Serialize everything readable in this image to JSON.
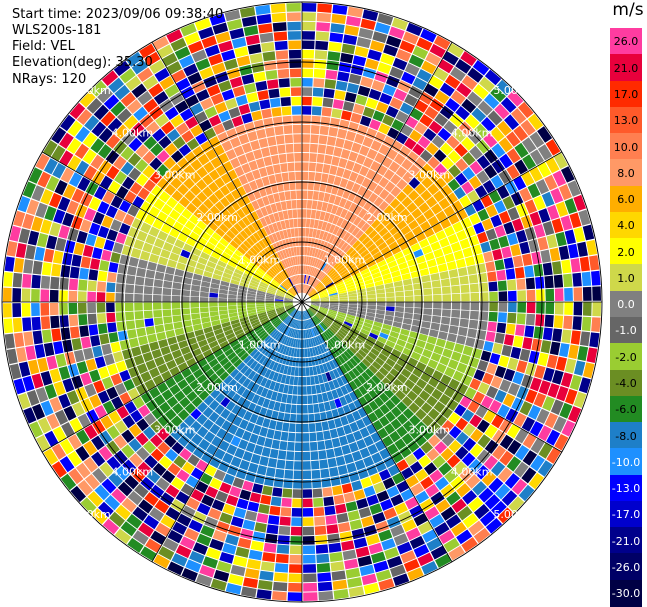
{
  "header": {
    "start_time": "Start time: 2023/09/06 09:38:40",
    "instrument": "WLS200s-181",
    "field": "Field: VEL",
    "elevation": "Elevation(deg): 35.30",
    "nrays": "NRays: 120"
  },
  "colorbar": {
    "unit": "m/s",
    "labels": [
      "26.0",
      "21.0",
      "17.0",
      "13.0",
      "10.0",
      "8.0",
      "6.0",
      "4.0",
      "2.0",
      "1.0",
      "0.0",
      "-1.0",
      "-2.0",
      "-4.0",
      "-6.0",
      "-8.0",
      "-10.0",
      "-13.0",
      "-17.0",
      "-21.0",
      "-26.0",
      "-30.0"
    ],
    "colors": [
      "#ff3ca0",
      "#e8003c",
      "#ff2a00",
      "#ff5a2a",
      "#ff7f50",
      "#ff9966",
      "#ffae00",
      "#ffd700",
      "#ffff00",
      "#cfd84a",
      "#808080",
      "#666666",
      "#9acd32",
      "#6b8e23",
      "#228b22",
      "#1e7fc8",
      "#1e90ff",
      "#0000ff",
      "#0000cd",
      "#00008b",
      "#000066",
      "#000044"
    ]
  },
  "chart_data": {
    "type": "heatmap",
    "subtype": "radar-ppi",
    "field": "VEL",
    "units": "m/s",
    "nrays": 120,
    "elevation_deg": 35.3,
    "range_rings_km": [
      1.0,
      2.0,
      3.0,
      4.0,
      5.0
    ],
    "range_ring_labels": [
      "1.00km",
      "2.00km",
      "3.00km",
      "4.00km",
      "5.00km"
    ],
    "max_range_km": 5.0,
    "valid_data_range_km": 3.0,
    "range_gates": 32,
    "value_range": [
      -30.0,
      26.0
    ],
    "azimuth_sectors": [
      {
        "direction": "north",
        "velocity_ms": 8.0
      },
      {
        "direction": "north-near",
        "velocity_ms": 6.0
      },
      {
        "direction": "east-west-upper",
        "velocity_ms": 2.0
      },
      {
        "direction": "east-west-band",
        "velocity_ms": 0.0
      },
      {
        "direction": "lower-band",
        "velocity_ms": -2.0
      },
      {
        "direction": "south-near",
        "velocity_ms": -6.0
      },
      {
        "direction": "south",
        "velocity_ms": -8.0
      }
    ],
    "beyond_valid_range": "noise"
  }
}
